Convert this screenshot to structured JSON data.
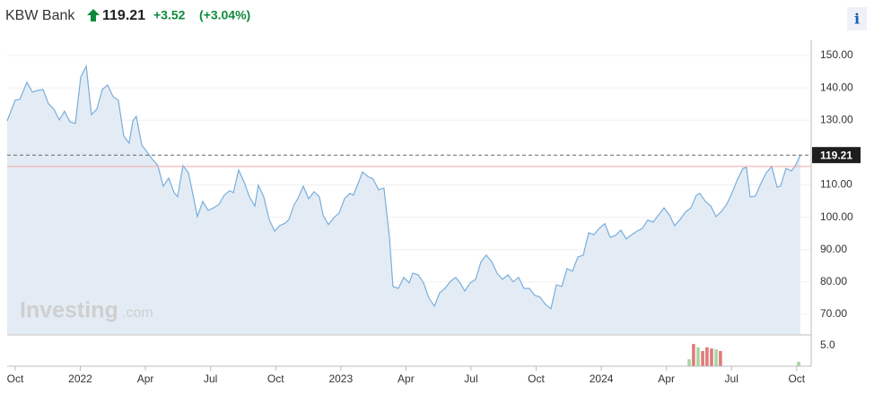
{
  "header": {
    "name": "KBW Bank",
    "price": 119.21,
    "change": "+3.52",
    "change_pct": "(+3.04%)",
    "info": "i"
  },
  "watermark": {
    "brand": "Investing",
    "suffix": ".com"
  },
  "chart_data": [
    {
      "type": "area",
      "xlim": [
        -0.37,
        36.67
      ],
      "ylim": [
        63.9,
        154.7
      ],
      "yticks": [
        {
          "value": 150,
          "label": "150.00"
        },
        {
          "value": 140,
          "label": "140.00"
        },
        {
          "value": 130,
          "label": "130.00"
        },
        {
          "value": 110,
          "label": "110.00"
        },
        {
          "value": 100,
          "label": "100.00"
        },
        {
          "value": 90,
          "label": "90.00"
        },
        {
          "value": 80,
          "label": "80.00"
        },
        {
          "value": 70,
          "label": "70.00"
        }
      ],
      "last_value": 119.21,
      "prev_close": 115.69,
      "grid": true,
      "x": [
        -0.37,
        0,
        0.21,
        0.54,
        0.79,
        1.03,
        1.28,
        1.53,
        1.78,
        2.03,
        2.27,
        2.52,
        2.77,
        3.02,
        3.27,
        3.51,
        3.76,
        4.01,
        4.26,
        4.51,
        4.75,
        5.0,
        5.25,
        5.42,
        5.58,
        5.83,
        6.08,
        6.32,
        6.57,
        6.82,
        7.07,
        7.32,
        7.48,
        7.73,
        7.98,
        8.23,
        8.39,
        8.64,
        8.89,
        9.14,
        9.39,
        9.63,
        9.88,
        10.05,
        10.29,
        10.54,
        10.79,
        11.04,
        11.2,
        11.45,
        11.7,
        11.95,
        12.19,
        12.44,
        12.61,
        12.86,
        13.02,
        13.27,
        13.52,
        13.77,
        14.01,
        14.18,
        14.43,
        14.68,
        14.92,
        15.17,
        15.42,
        15.58,
        15.83,
        16.0,
        16.25,
        16.49,
        16.74,
        16.99,
        17.24,
        17.4,
        17.65,
        17.9,
        18.15,
        18.31,
        18.56,
        18.81,
        19.06,
        19.31,
        19.55,
        19.8,
        20.05,
        20.3,
        20.55,
        20.71,
        20.96,
        21.21,
        21.46,
        21.7,
        21.95,
        22.2,
        22.45,
        22.7,
        22.94,
        23.19,
        23.44,
        23.69,
        23.94,
        24.18,
        24.43,
        24.68,
        24.93,
        25.18,
        25.42,
        25.67,
        25.92,
        26.17,
        26.42,
        26.66,
        26.91,
        27.16,
        27.41,
        27.66,
        27.9,
        28.15,
        28.4,
        28.65,
        28.9,
        29.14,
        29.39,
        29.64,
        29.89,
        30.14,
        30.38,
        30.63,
        30.88,
        31.13,
        31.38,
        31.54,
        31.79,
        32.04,
        32.29,
        32.53,
        32.78,
        33.03,
        33.28,
        33.53,
        33.69,
        33.86,
        34.1,
        34.35,
        34.6,
        34.85,
        35.1,
        35.26,
        35.51,
        35.76,
        35.92,
        36.17
      ],
      "series": [
        {
          "color": "#7aaedb",
          "fill": "#e3ecf5",
          "values": [
            129.8,
            136.2,
            136.4,
            141.7,
            138.7,
            139.2,
            139.5,
            135.1,
            133.4,
            130.1,
            132.8,
            129.5,
            129.0,
            143.4,
            146.7,
            131.7,
            133.4,
            139.5,
            140.9,
            137.3,
            136.2,
            125.1,
            122.9,
            129.8,
            131.2,
            122.3,
            120.1,
            117.9,
            116.0,
            109.6,
            112.1,
            107.6,
            106.3,
            116.0,
            113.7,
            105.7,
            100.2,
            104.9,
            102.1,
            102.9,
            104.0,
            106.8,
            108.2,
            107.6,
            114.6,
            111.0,
            106.3,
            103.5,
            109.9,
            106.3,
            99.3,
            95.7,
            97.4,
            98.2,
            99.3,
            104.0,
            105.7,
            109.6,
            105.7,
            107.9,
            106.3,
            100.7,
            97.7,
            99.9,
            101.3,
            105.7,
            107.4,
            106.8,
            111.0,
            114.0,
            112.6,
            111.8,
            108.5,
            109.0,
            93.8,
            78.6,
            78.0,
            81.4,
            79.7,
            82.7,
            82.2,
            79.7,
            75.0,
            72.5,
            76.6,
            78.0,
            80.2,
            81.4,
            79.1,
            77.2,
            79.7,
            80.8,
            86.3,
            88.3,
            86.3,
            82.7,
            80.8,
            82.2,
            80.0,
            81.4,
            78.0,
            78.0,
            75.8,
            75.3,
            73.0,
            71.7,
            79.1,
            78.6,
            84.1,
            83.3,
            87.7,
            88.3,
            95.2,
            94.6,
            96.6,
            98.0,
            93.8,
            94.4,
            96.0,
            93.3,
            94.6,
            95.7,
            96.6,
            99.1,
            98.5,
            100.7,
            102.9,
            100.7,
            97.4,
            99.3,
            101.6,
            102.9,
            106.8,
            107.4,
            104.9,
            103.5,
            100.2,
            101.8,
            104.0,
            107.6,
            111.8,
            115.1,
            115.4,
            106.3,
            106.5,
            110.4,
            113.7,
            115.7,
            109.3,
            109.6,
            115.1,
            114.3,
            115.7,
            119.21
          ]
        }
      ]
    },
    {
      "type": "bar",
      "xlim": [
        -0.37,
        36.67
      ],
      "ylim": [
        0,
        7.4
      ],
      "yticks": [
        {
          "value": 5,
          "label": "5.0"
        }
      ],
      "xticks": [
        {
          "value": 0,
          "label": "Oct"
        },
        {
          "value": 3,
          "label": "2022"
        },
        {
          "value": 6,
          "label": "Apr"
        },
        {
          "value": 9,
          "label": "Jul"
        },
        {
          "value": 12,
          "label": "Oct"
        },
        {
          "value": 15,
          "label": "2023"
        },
        {
          "value": 18,
          "label": "Apr"
        },
        {
          "value": 21,
          "label": "Jul"
        },
        {
          "value": 24,
          "label": "Oct"
        },
        {
          "value": 27,
          "label": "2024"
        },
        {
          "value": 30,
          "label": "Apr"
        },
        {
          "value": 33,
          "label": "Jul"
        },
        {
          "value": 36,
          "label": "Oct"
        }
      ],
      "x": [
        31.05,
        31.25,
        31.46,
        31.67,
        31.87,
        32.08,
        32.29,
        32.49,
        36.09
      ],
      "values": [
        1.7,
        5.4,
        4.6,
        3.7,
        4.6,
        4.3,
        4.1,
        3.7,
        1.1
      ],
      "colors": [
        "#a8d5a2",
        "#e07a7a",
        "#a8d5a2",
        "#e07a7a",
        "#e07a7a",
        "#e07a7a",
        "#a8d5a2",
        "#e07a7a",
        "#a8d5a2"
      ]
    }
  ]
}
